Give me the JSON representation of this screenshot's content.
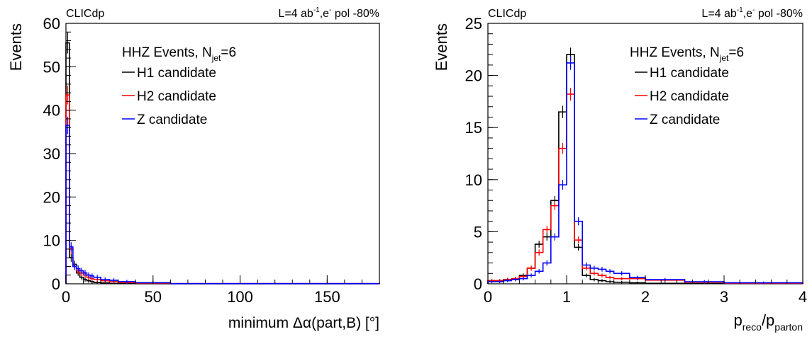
{
  "chart_data": [
    {
      "type": "histogram",
      "header_left": "CLICdp",
      "header_right": {
        "a": "L=4 ab",
        "sup1": "-1",
        "b": ",e",
        "sup2": "-",
        "c": " pol -80%"
      },
      "ylabel": "Events",
      "xlabel": "minimum Δα(part,B) [°]",
      "xlim": [
        0,
        180
      ],
      "ylim": [
        0,
        60
      ],
      "xticks": [
        "0",
        "50",
        "100",
        "150"
      ],
      "xtick_values": [
        0,
        50,
        100,
        150
      ],
      "yticks": [
        "0",
        "10",
        "20",
        "30",
        "40",
        "50",
        "60"
      ],
      "ytick_values": [
        0,
        10,
        20,
        30,
        40,
        50,
        60
      ],
      "legend": {
        "title_main": "HHZ Events, N",
        "title_sub": "jet",
        "title_tail": "=6",
        "placement": "top-right"
      },
      "series": [
        {
          "name": "H1 candidate",
          "color": "#000000",
          "edges": [
            0,
            2,
            4,
            6,
            8,
            10,
            12,
            14,
            16,
            20,
            25,
            30,
            40,
            60,
            180
          ],
          "values": [
            55.5,
            6,
            4.5,
            2.5,
            1.5,
            1.0,
            0.7,
            0.5,
            0.3,
            0.2,
            0.1,
            0.05,
            0.03,
            0
          ]
        },
        {
          "name": "H2 candidate",
          "color": "#ff0000",
          "edges": [
            0,
            2,
            4,
            6,
            8,
            10,
            12,
            14,
            16,
            20,
            25,
            30,
            40,
            60,
            180
          ],
          "values": [
            43.5,
            8,
            4,
            3,
            2.5,
            2.0,
            1.5,
            1.2,
            1.0,
            0.7,
            0.5,
            0.3,
            0.15,
            0.05
          ]
        },
        {
          "name": "Z candidate",
          "color": "#0000ff",
          "edges": [
            0,
            2,
            4,
            6,
            8,
            10,
            12,
            14,
            16,
            20,
            25,
            30,
            40,
            60,
            180
          ],
          "values": [
            36.5,
            8.5,
            4,
            3.5,
            3.0,
            2.5,
            2.0,
            1.8,
            1.5,
            1.0,
            0.8,
            0.5,
            0.25,
            0.05
          ]
        }
      ]
    },
    {
      "type": "histogram",
      "header_left": "CLICdp",
      "header_right": {
        "a": "L=4 ab",
        "sup1": "-1",
        "b": ",e",
        "sup2": "-",
        "c": " pol -80%"
      },
      "ylabel": "Events",
      "xlabel": {
        "main": "p",
        "sub1": "reco",
        "mid": "/p",
        "sub2": "parton"
      },
      "xlim": [
        0,
        4
      ],
      "ylim": [
        0,
        25
      ],
      "xticks": [
        "0",
        "1",
        "2",
        "3",
        "4"
      ],
      "xtick_values": [
        0,
        1,
        2,
        3,
        4
      ],
      "yticks": [
        "0",
        "5",
        "10",
        "15",
        "20",
        "25"
      ],
      "ytick_values": [
        0,
        5,
        10,
        15,
        20,
        25
      ],
      "legend": {
        "title_main": "HHZ Events, N",
        "title_sub": "jet",
        "title_tail": "=6",
        "placement": "top-right"
      },
      "series": [
        {
          "name": "H1 candidate",
          "color": "#000000",
          "edges": [
            0,
            0.1,
            0.2,
            0.3,
            0.4,
            0.5,
            0.6,
            0.7,
            0.8,
            0.9,
            1.0,
            1.1,
            1.2,
            1.3,
            1.4,
            1.5,
            1.6,
            1.8,
            2.0,
            2.5,
            3.0,
            4.0
          ],
          "values": [
            0.3,
            0.3,
            0.4,
            0.5,
            0.8,
            1.5,
            3.8,
            4.5,
            8.0,
            16.5,
            22.0,
            3.5,
            0.8,
            0.4,
            0.3,
            0.2,
            0.15,
            0.1,
            0.05,
            0.03,
            0.02
          ]
        },
        {
          "name": "H2 candidate",
          "color": "#ff0000",
          "edges": [
            0,
            0.1,
            0.2,
            0.3,
            0.4,
            0.5,
            0.6,
            0.7,
            0.8,
            0.9,
            1.0,
            1.1,
            1.2,
            1.3,
            1.4,
            1.5,
            1.6,
            1.8,
            2.0,
            2.5,
            3.0,
            4.0
          ],
          "values": [
            0.3,
            0.3,
            0.4,
            0.5,
            0.7,
            1.5,
            3.0,
            5.2,
            7.5,
            13.0,
            18.2,
            4.2,
            1.5,
            1.0,
            0.8,
            0.6,
            0.5,
            0.5,
            0.35,
            0.15,
            0.05
          ]
        },
        {
          "name": "Z candidate",
          "color": "#0000ff",
          "edges": [
            0,
            0.1,
            0.2,
            0.3,
            0.4,
            0.5,
            0.6,
            0.7,
            0.8,
            0.9,
            1.0,
            1.1,
            1.2,
            1.3,
            1.4,
            1.5,
            1.6,
            1.8,
            2.0,
            2.5,
            3.0,
            4.0
          ],
          "values": [
            0.2,
            0.2,
            0.3,
            0.4,
            0.5,
            0.8,
            1.2,
            2.0,
            4.5,
            9.5,
            21.2,
            6.0,
            1.8,
            1.5,
            1.4,
            1.2,
            1.0,
            0.6,
            0.4,
            0.2,
            0.1
          ]
        }
      ]
    }
  ]
}
